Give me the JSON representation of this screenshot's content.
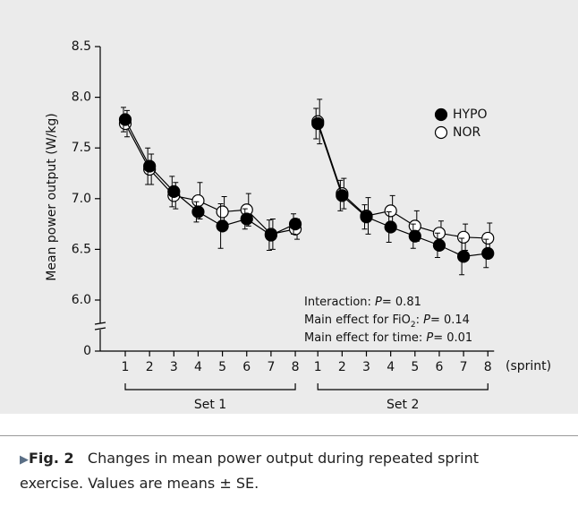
{
  "chart_data": {
    "type": "line",
    "y_label": "Mean power output (W/kg)",
    "x_label": "(sprint)",
    "ylim": [
      6.0,
      8.5
    ],
    "axis_break": true,
    "yticks": [
      0,
      {
        "value": 6.0,
        "label": "6.0"
      },
      6.5,
      {
        "value": 7.0,
        "label": "7.0"
      },
      7.5,
      {
        "value": 8.0,
        "label": "8.0"
      },
      8.5
    ],
    "groups": [
      {
        "label": "Set 1",
        "categories": [
          "1",
          "2",
          "3",
          "4",
          "5",
          "6",
          "7",
          "8"
        ]
      },
      {
        "label": "Set 2",
        "categories": [
          "1",
          "2",
          "3",
          "4",
          "5",
          "6",
          "7",
          "8"
        ]
      }
    ],
    "series": [
      {
        "name": "HYPO",
        "color": "#000000",
        "marker_fill": "#000000",
        "values": [
          [
            7.78,
            7.32,
            7.07,
            6.87,
            6.73,
            6.8,
            6.64,
            6.75
          ],
          [
            7.74,
            7.03,
            6.82,
            6.72,
            6.63,
            6.54,
            6.43,
            6.46
          ]
        ],
        "errors": [
          [
            0.12,
            0.18,
            0.15,
            0.1,
            0.22,
            0.1,
            0.15,
            0.1
          ],
          [
            0.15,
            0.15,
            0.12,
            0.15,
            0.12,
            0.12,
            0.18,
            0.14
          ]
        ]
      },
      {
        "name": "NOR",
        "color": "#000000",
        "marker_fill": "#ffffff",
        "values": [
          [
            7.74,
            7.29,
            7.03,
            6.98,
            6.87,
            6.89,
            6.65,
            6.7
          ],
          [
            7.76,
            7.05,
            6.83,
            6.88,
            6.73,
            6.66,
            6.62,
            6.61
          ]
        ],
        "errors": [
          [
            0.13,
            0.15,
            0.13,
            0.18,
            0.15,
            0.16,
            0.15,
            0.1
          ],
          [
            0.22,
            0.15,
            0.18,
            0.15,
            0.15,
            0.12,
            0.13,
            0.15
          ]
        ]
      }
    ],
    "annotations": [
      [
        "Interaction: ",
        "P",
        "= 0.81"
      ],
      [
        "Main effect for FiO",
        "2",
        ": ",
        "P",
        "= 0.14"
      ],
      [
        "Main effect for time: ",
        "P",
        "= 0.01"
      ]
    ],
    "caption": {
      "label": "Fig. 2",
      "text": "Changes in mean power output during repeated sprint exercise. Values are means ± SE."
    }
  }
}
